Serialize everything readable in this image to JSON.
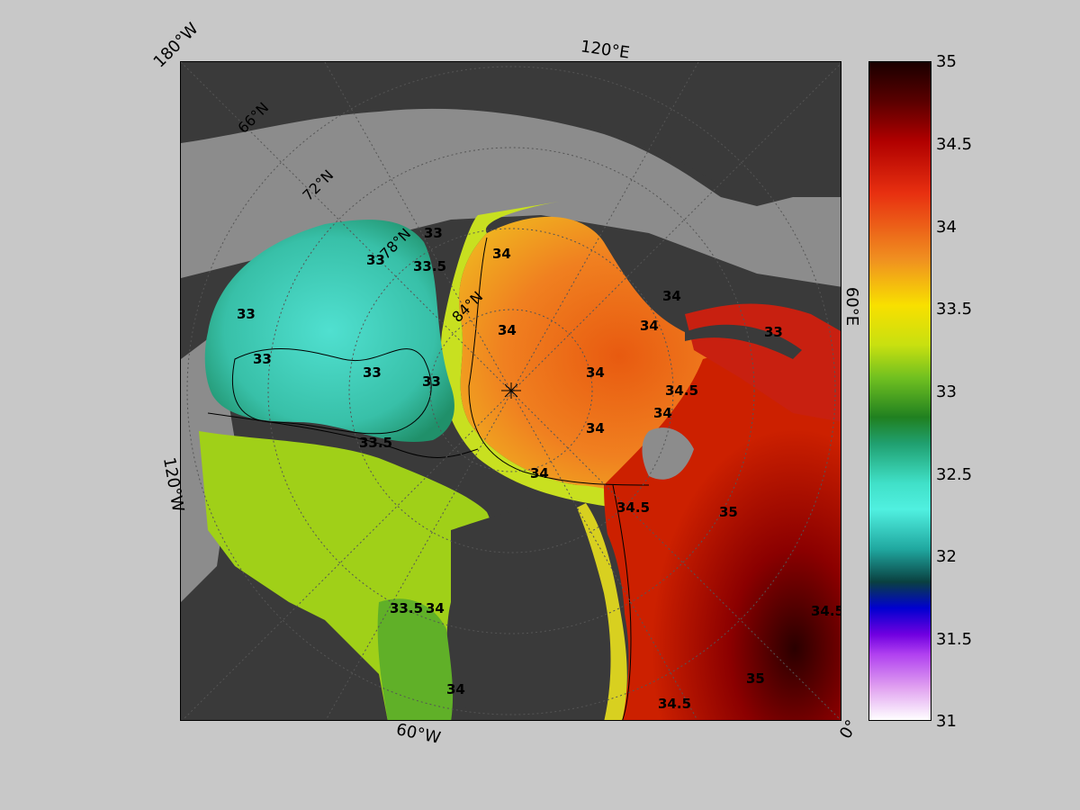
{
  "map": {
    "edge_labels": {
      "top_left": "180°W",
      "top": "120°E",
      "right": "60°E",
      "left": "120°W",
      "bottom": "60°W",
      "bottom_right": "0°"
    },
    "latitude_labels": [
      "66°N",
      "72°N",
      "78°N",
      "84°N"
    ],
    "contour_labels": [
      "33",
      "33",
      "33",
      "33",
      "33",
      "33",
      "33",
      "33.5",
      "33.5",
      "33.5",
      "34",
      "34",
      "34",
      "34",
      "34",
      "34",
      "34",
      "34",
      "34",
      "34",
      "34.5",
      "34.5",
      "34.5",
      "34.5",
      "35",
      "35"
    ],
    "colors": {
      "frame_bg": "#c8c8c8",
      "land": "#3a3a3a",
      "ice_shelf": "#8c8c8c"
    }
  },
  "colorbar": {
    "ticks": [
      "35",
      "34.5",
      "34",
      "33.5",
      "33",
      "32.5",
      "32",
      "31.5",
      "31"
    ],
    "range": [
      31,
      35
    ]
  }
}
